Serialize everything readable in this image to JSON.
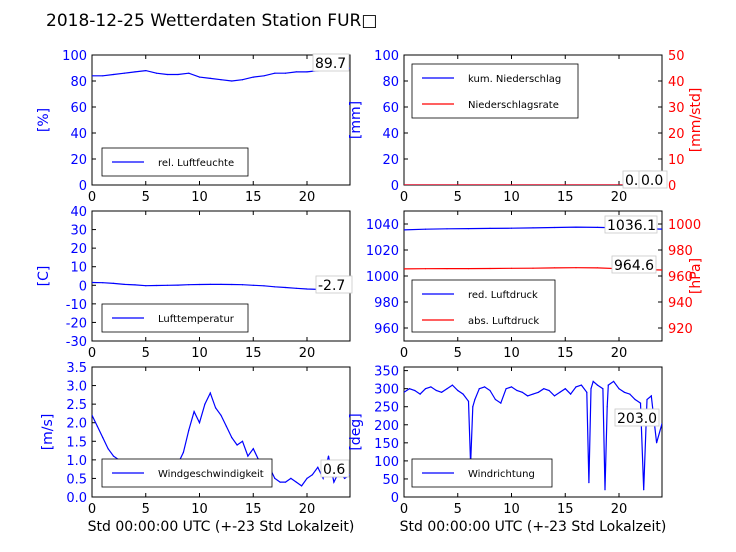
{
  "title": "2018-12-25 Wetterdaten Station FUR□",
  "xlabel": "Std 00:00:00 UTC (+-23 Std Lokalzeit)",
  "colors": {
    "blue": "#0000ff",
    "red": "#ff0000",
    "black": "#000000"
  },
  "chart_data": [
    {
      "type": "line",
      "panel": "humidity",
      "xlim": [
        0,
        24
      ],
      "ylim": [
        0,
        100
      ],
      "ylabel": "[%]",
      "xticks": [
        0,
        5,
        10,
        15,
        20
      ],
      "yticks": [
        0,
        20,
        40,
        60,
        80,
        100
      ],
      "legend": "bottom-left",
      "series": [
        {
          "name": "rel. Luftfeuchte",
          "color": "#0000ff",
          "x": [
            0,
            1,
            2,
            3,
            4,
            5,
            6,
            7,
            8,
            9,
            10,
            11,
            12,
            13,
            14,
            15,
            16,
            17,
            18,
            19,
            20,
            21,
            22,
            23,
            24
          ],
          "y": [
            84,
            84,
            85,
            86,
            87,
            88,
            86,
            85,
            85,
            86,
            83,
            82,
            81,
            80,
            81,
            83,
            84,
            86,
            86,
            87,
            87,
            88,
            89,
            89.5,
            89.7
          ]
        }
      ],
      "last_value": "89.7"
    },
    {
      "type": "line",
      "panel": "precipitation",
      "xlim": [
        0,
        24
      ],
      "ylim": [
        0,
        100
      ],
      "ylabel": "[mm]",
      "y2lim": [
        0,
        50
      ],
      "y2label": "[mm/std]",
      "xticks": [
        0,
        5,
        10,
        15,
        20
      ],
      "yticks": [
        0,
        20,
        40,
        60,
        80,
        100
      ],
      "y2ticks": [
        0,
        10,
        20,
        30,
        40,
        50
      ],
      "legend": "top-left",
      "series": [
        {
          "name": "kum. Niederschlag",
          "color": "#0000ff",
          "axis": "left",
          "x": [
            0,
            24
          ],
          "y": [
            0,
            0
          ]
        },
        {
          "name": "Niederschlagsrate",
          "color": "#ff0000",
          "axis": "right",
          "x": [
            0,
            24
          ],
          "y": [
            0,
            0
          ]
        }
      ],
      "last_value": "0.0",
      "last_value_2": "0.0"
    },
    {
      "type": "line",
      "panel": "temperature",
      "xlim": [
        0,
        24
      ],
      "ylim": [
        -30,
        40
      ],
      "ylabel": "[C]",
      "xticks": [
        0,
        5,
        10,
        15,
        20
      ],
      "yticks": [
        -30,
        -20,
        -10,
        0,
        10,
        20,
        30,
        40
      ],
      "legend": "bottom-left",
      "series": [
        {
          "name": "Lufttemperatur",
          "color": "#0000ff",
          "x": [
            0,
            1,
            2,
            3,
            4,
            5,
            6,
            7,
            8,
            9,
            10,
            11,
            12,
            13,
            14,
            15,
            16,
            17,
            18,
            19,
            20,
            21,
            22,
            23,
            24
          ],
          "y": [
            1.5,
            1.4,
            1.0,
            0.5,
            0.2,
            -0.2,
            -0.1,
            0.0,
            0.1,
            0.3,
            0.4,
            0.5,
            0.5,
            0.4,
            0.3,
            0.0,
            -0.3,
            -0.8,
            -1.2,
            -1.6,
            -2.0,
            -2.2,
            -2.4,
            -2.6,
            -2.7
          ]
        }
      ],
      "last_value": "-2.7"
    },
    {
      "type": "line",
      "panel": "pressure",
      "xlim": [
        0,
        24
      ],
      "ylim": [
        950,
        1050
      ],
      "y2lim": [
        910,
        1010
      ],
      "y2label": "[hPa]",
      "xticks": [
        0,
        5,
        10,
        15,
        20
      ],
      "yticks": [
        960,
        980,
        1000,
        1020,
        1040
      ],
      "y2ticks": [
        920,
        940,
        960,
        980,
        1000
      ],
      "legend": "bottom-left",
      "series": [
        {
          "name": "red. Luftdruck",
          "color": "#0000ff",
          "axis": "left",
          "x": [
            0,
            2,
            4,
            6,
            8,
            10,
            12,
            14,
            16,
            18,
            20,
            22,
            24
          ],
          "y": [
            1035.5,
            1036,
            1036.3,
            1036.5,
            1036.6,
            1036.8,
            1037,
            1037.3,
            1037.6,
            1037.4,
            1037,
            1036.5,
            1036.1
          ]
        },
        {
          "name": "abs. Luftdruck",
          "color": "#ff0000",
          "axis": "right",
          "x": [
            0,
            2,
            4,
            6,
            8,
            10,
            12,
            14,
            16,
            18,
            20,
            22,
            24
          ],
          "y": [
            965.5,
            965.6,
            965.7,
            965.7,
            965.8,
            965.9,
            966,
            966.2,
            966.4,
            966.2,
            965.6,
            965,
            964.6
          ]
        }
      ],
      "last_value": "1036.1",
      "last_value_2": "964.6"
    },
    {
      "type": "line",
      "panel": "wind_speed",
      "xlim": [
        0,
        24
      ],
      "ylim": [
        0,
        3.5
      ],
      "ylabel": "[m/s]",
      "xticks": [
        0,
        5,
        10,
        15,
        20
      ],
      "yticks": [
        0.0,
        0.5,
        1.0,
        1.5,
        2.0,
        2.5,
        3.0,
        3.5
      ],
      "legend": "bottom-left",
      "series": [
        {
          "name": "Windgeschwindigkeit",
          "color": "#0000ff",
          "x": [
            0,
            0.5,
            1,
            1.5,
            2,
            2.5,
            3,
            3.5,
            4,
            4.5,
            5,
            5.5,
            6,
            6.5,
            7,
            7.5,
            8,
            8.5,
            9,
            9.5,
            10,
            10.5,
            11,
            11.5,
            12,
            12.5,
            13,
            13.5,
            14,
            14.5,
            15,
            15.5,
            16,
            16.5,
            17,
            17.5,
            18,
            18.5,
            19,
            19.5,
            20,
            20.5,
            21,
            21.5,
            22,
            22.5,
            23,
            23.5,
            24
          ],
          "y": [
            2.2,
            1.9,
            1.6,
            1.3,
            1.1,
            1.0,
            0.9,
            0.8,
            0.8,
            0.8,
            0.7,
            0.7,
            0.8,
            0.9,
            0.7,
            0.6,
            0.9,
            1.2,
            1.8,
            2.3,
            2.0,
            2.5,
            2.8,
            2.4,
            2.2,
            1.9,
            1.6,
            1.4,
            1.5,
            1.1,
            1.3,
            1.0,
            0.9,
            0.8,
            0.5,
            0.4,
            0.4,
            0.5,
            0.4,
            0.3,
            0.5,
            0.6,
            0.8,
            0.5,
            1.1,
            0.4,
            0.7,
            0.5,
            0.6
          ]
        }
      ],
      "last_value": "0.6"
    },
    {
      "type": "line",
      "panel": "wind_direction",
      "xlim": [
        0,
        24
      ],
      "ylim": [
        0,
        360
      ],
      "ylabel": "[deg]",
      "xticks": [
        0,
        5,
        10,
        15,
        20
      ],
      "yticks": [
        0,
        50,
        100,
        150,
        200,
        250,
        300,
        350
      ],
      "legend": "bottom-left",
      "series": [
        {
          "name": "Windrichtung",
          "color": "#0000ff",
          "x": [
            0,
            0.5,
            1,
            1.5,
            2,
            2.5,
            3,
            3.5,
            4,
            4.5,
            5,
            5.5,
            6,
            6.2,
            6.4,
            6.6,
            7,
            7.5,
            8,
            8.5,
            9,
            9.5,
            10,
            10.5,
            11,
            11.5,
            12,
            12.5,
            13,
            13.5,
            14,
            14.5,
            15,
            15.5,
            16,
            16.5,
            17,
            17.2,
            17.4,
            17.6,
            18,
            18.5,
            18.7,
            18.9,
            19,
            19.5,
            20,
            20.5,
            21,
            21.5,
            22,
            22.3,
            22.6,
            23,
            23.5,
            24
          ],
          "y": [
            290,
            300,
            295,
            285,
            300,
            305,
            295,
            290,
            300,
            310,
            295,
            285,
            265,
            90,
            250,
            270,
            300,
            305,
            295,
            270,
            260,
            300,
            305,
            295,
            290,
            280,
            285,
            290,
            300,
            295,
            280,
            290,
            300,
            285,
            305,
            310,
            290,
            40,
            300,
            320,
            310,
            300,
            20,
            250,
            310,
            320,
            300,
            290,
            285,
            270,
            260,
            20,
            270,
            280,
            150,
            203
          ]
        }
      ],
      "last_value": "203.0"
    }
  ]
}
